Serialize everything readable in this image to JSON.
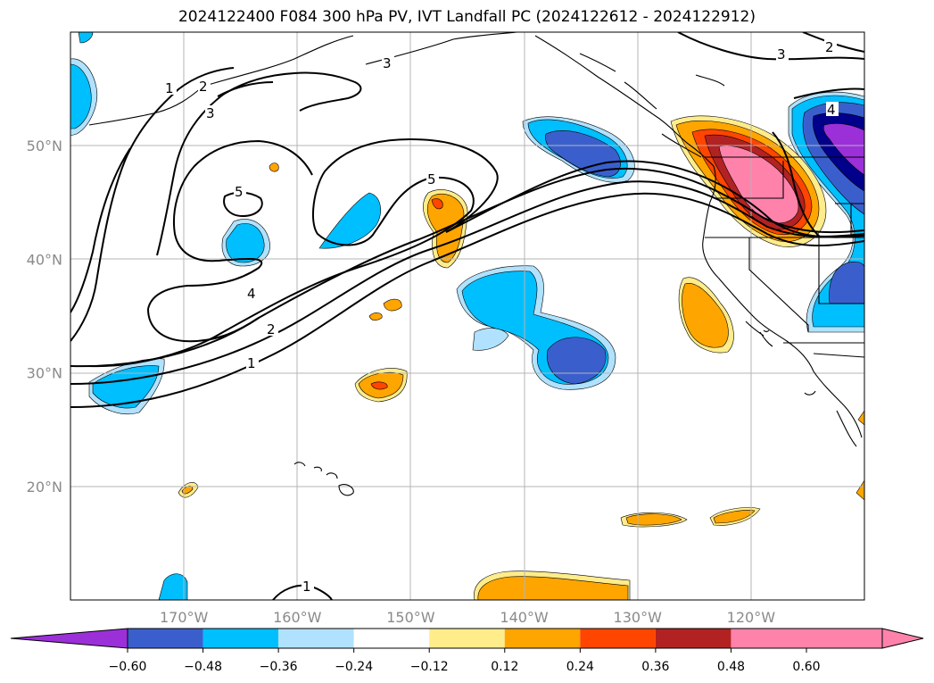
{
  "title": "2024122400 F084 300 hPa PV, IVT Landfall PC (2024122612 - 2024122912)",
  "map": {
    "lon_range": [
      -180,
      -110
    ],
    "lat_range": [
      10,
      60
    ],
    "lon_ticks": [
      {
        "value": -170,
        "label": "170°W"
      },
      {
        "value": -160,
        "label": "160°W"
      },
      {
        "value": -150,
        "label": "150°W"
      },
      {
        "value": -140,
        "label": "140°W"
      },
      {
        "value": -130,
        "label": "130°W"
      },
      {
        "value": -120,
        "label": "120°W"
      }
    ],
    "lat_ticks": [
      {
        "value": 20,
        "label": "20°N"
      },
      {
        "value": 30,
        "label": "30°N"
      },
      {
        "value": 40,
        "label": "40°N"
      },
      {
        "value": 50,
        "label": "50°N"
      }
    ],
    "gridlines": true
  },
  "pv_contour_labels": [
    "1",
    "2",
    "3",
    "5",
    "5",
    "4",
    "2",
    "1",
    "3",
    "2",
    "4",
    "1"
  ],
  "colorbar": {
    "ticks": [
      "−0.60",
      "−0.48",
      "−0.36",
      "−0.24",
      "−0.12",
      "0.12",
      "0.24",
      "0.36",
      "0.48",
      "0.60"
    ],
    "colors": [
      "#9b30d8",
      "#00008b",
      "#3a5fcd",
      "#00bfff",
      "#b0e2ff",
      "#ffffff",
      "#ffec8b",
      "#ffa500",
      "#ff4500",
      "#b22222",
      "#ff82ab",
      "#ff82ab"
    ],
    "extend": "both"
  }
}
